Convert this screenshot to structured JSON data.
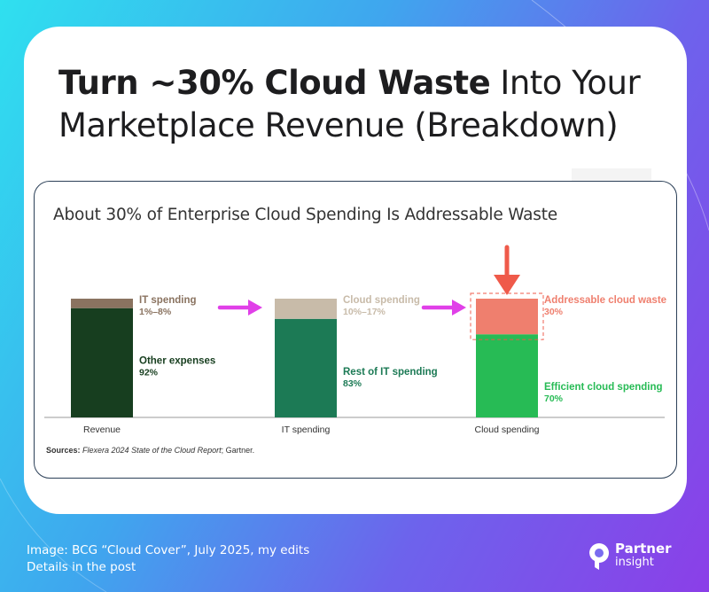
{
  "headline": {
    "strong": "Turn ~30% Cloud Waste",
    "rest": " Into Your Marketplace Revenue (Breakdown)"
  },
  "chart_data": {
    "type": "bar",
    "title": "About 30% of Enterprise Cloud Spending Is Addressable Waste",
    "categories": [
      "Revenue",
      "IT spending",
      "Cloud spending"
    ],
    "series": [
      {
        "name": "IT spending",
        "values": [
          8,
          null,
          null
        ],
        "range_label": "1%–8%",
        "color": "#8a7360"
      },
      {
        "name": "Other expenses",
        "values": [
          92,
          null,
          null
        ],
        "range_label": "92%",
        "color": "#173e1f"
      },
      {
        "name": "Cloud spending",
        "values": [
          null,
          17,
          null
        ],
        "range_label": "10%–17%",
        "color": "#c8bba9"
      },
      {
        "name": "Rest of IT spending",
        "values": [
          null,
          83,
          null
        ],
        "range_label": "83%",
        "color": "#1c7a55"
      },
      {
        "name": "Addressable cloud waste",
        "values": [
          null,
          null,
          30
        ],
        "range_label": "30%",
        "color": "#ef7f6e"
      },
      {
        "name": "Efficient cloud spending",
        "values": [
          null,
          null,
          70
        ],
        "range_label": "70%",
        "color": "#27bb55"
      }
    ],
    "ylim": [
      0,
      100
    ],
    "stack_order_bottom_to_top": [
      [
        "Other expenses",
        "IT spending"
      ],
      [
        "Rest of IT spending",
        "Cloud spending"
      ],
      [
        "Efficient cloud spending",
        "Addressable cloud waste"
      ]
    ],
    "label_colors": [
      "#8a7360",
      "#173e1f",
      "#c8bba9",
      "#1c7a55",
      "#ef7f6e",
      "#27bb55"
    ],
    "arrow_color": "#e040e8",
    "highlight_arrow_color": "#ef5a4a"
  },
  "sources": {
    "label": "Sources:",
    "italic": "Flexera 2024 State of the Cloud Report",
    "rest": "; Gartner."
  },
  "footer": {
    "line1": "Image: BCG “Cloud Cover”, July 2025, my edits",
    "line2": "Details in the post"
  },
  "logo": {
    "line1": "Partner",
    "line2": "insight"
  }
}
